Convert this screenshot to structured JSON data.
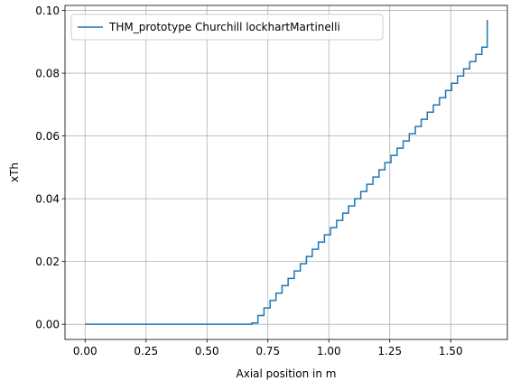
{
  "chart_data": {
    "type": "line",
    "title": "",
    "xlabel": "Axial position in m",
    "ylabel": "xTh",
    "xlim": [
      -0.0825,
      1.7325
    ],
    "ylim": [
      -0.00484,
      0.1016
    ],
    "xticks": [
      0.0,
      0.25,
      0.5,
      0.75,
      1.0,
      1.25,
      1.5
    ],
    "xtick_labels": [
      "0.00",
      "0.25",
      "0.50",
      "0.75",
      "1.00",
      "1.25",
      "1.50"
    ],
    "yticks": [
      0.0,
      0.02,
      0.04,
      0.06,
      0.08,
      0.1
    ],
    "ytick_labels": [
      "0.00",
      "0.02",
      "0.04",
      "0.06",
      "0.08",
      "0.10"
    ],
    "grid": true,
    "legend": {
      "position": "top-left"
    },
    "series": [
      {
        "name": "THM_prototype Churchill lockhartMartinelli",
        "color": "#1f77b4",
        "step": "post",
        "x": [
          0.0,
          0.684,
          0.709,
          0.734,
          0.759,
          0.783,
          0.808,
          0.833,
          0.858,
          0.883,
          0.908,
          0.932,
          0.957,
          0.982,
          1.007,
          1.032,
          1.057,
          1.081,
          1.106,
          1.131,
          1.156,
          1.181,
          1.206,
          1.23,
          1.255,
          1.28,
          1.305,
          1.33,
          1.355,
          1.379,
          1.404,
          1.429,
          1.454,
          1.479,
          1.504,
          1.528,
          1.553,
          1.578,
          1.603,
          1.628,
          1.65
        ],
        "y": [
          0.0,
          0.0004,
          0.0028,
          0.0052,
          0.0076,
          0.0099,
          0.0123,
          0.0146,
          0.017,
          0.0193,
          0.0216,
          0.0239,
          0.0262,
          0.0285,
          0.0308,
          0.0331,
          0.0354,
          0.0377,
          0.04,
          0.0423,
          0.0446,
          0.0469,
          0.0492,
          0.0515,
          0.0538,
          0.0561,
          0.0584,
          0.0607,
          0.063,
          0.0653,
          0.0676,
          0.0699,
          0.0722,
          0.0745,
          0.0768,
          0.0791,
          0.0814,
          0.0837,
          0.086,
          0.0883,
          0.097
        ]
      }
    ]
  }
}
